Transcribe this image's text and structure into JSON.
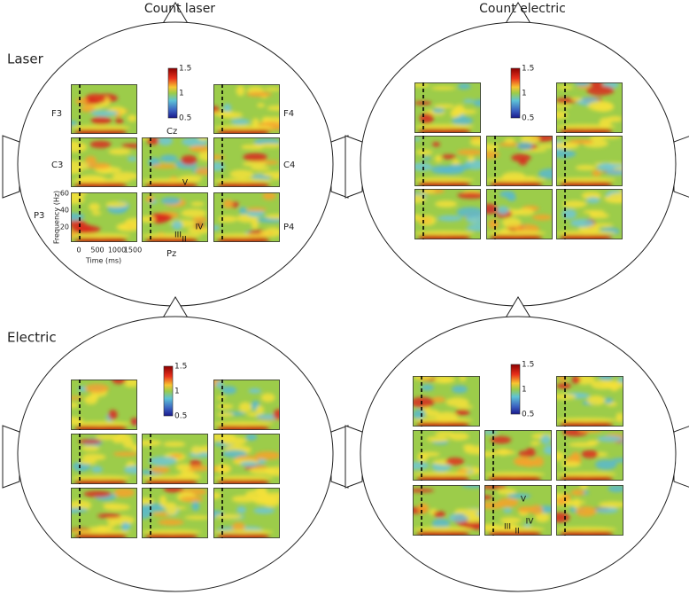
{
  "columns": [
    "Count laser",
    "Count electric"
  ],
  "rows": [
    "Laser",
    "Electric"
  ],
  "colorbar": {
    "labels": [
      "1.5",
      "1",
      "0.5"
    ]
  },
  "electrodes": {
    "F3": "F3",
    "F4": "F4",
    "C3": "C3",
    "C4": "C4",
    "P3": "P3",
    "P4": "P4",
    "Cz": "Cz",
    "Pz": "Pz"
  },
  "axes": {
    "y_label": "Frequency (Hz)",
    "x_label": "Time (ms)",
    "yticks": [
      "60",
      "40",
      "20"
    ],
    "xticks": [
      "0",
      "500",
      "1000",
      "1500"
    ]
  },
  "components": [
    "V",
    "IV",
    "III",
    "II"
  ]
}
